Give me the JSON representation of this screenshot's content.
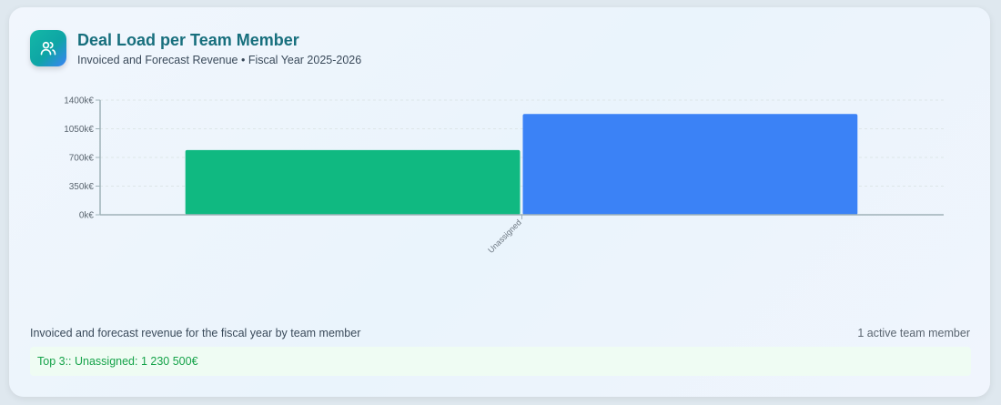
{
  "header": {
    "icon": "users-icon",
    "title": "Deal Load per Team Member",
    "subtitle": "Invoiced and Forecast Revenue • Fiscal Year 2025-2026"
  },
  "chart_data": {
    "type": "bar",
    "categories": [
      "Unassigned"
    ],
    "series": [
      {
        "values": [
          790
        ],
        "color": "#10b981"
      },
      {
        "values": [
          1230.5
        ],
        "color": "#3b82f6"
      }
    ],
    "unit": "k€",
    "ylim": [
      0,
      1400
    ],
    "yticks": [
      0,
      350,
      700,
      1050,
      1400
    ],
    "ytick_labels": [
      "0k€",
      "350k€",
      "700k€",
      "1050k€",
      "1400k€"
    ],
    "grid": "horizontal dashed",
    "legend": "none"
  },
  "footer": {
    "description": "Invoiced and forecast revenue for the fiscal year by team member",
    "member_count": "1 active team member",
    "top3": "Top 3:: Unassigned: 1 230 500€"
  }
}
